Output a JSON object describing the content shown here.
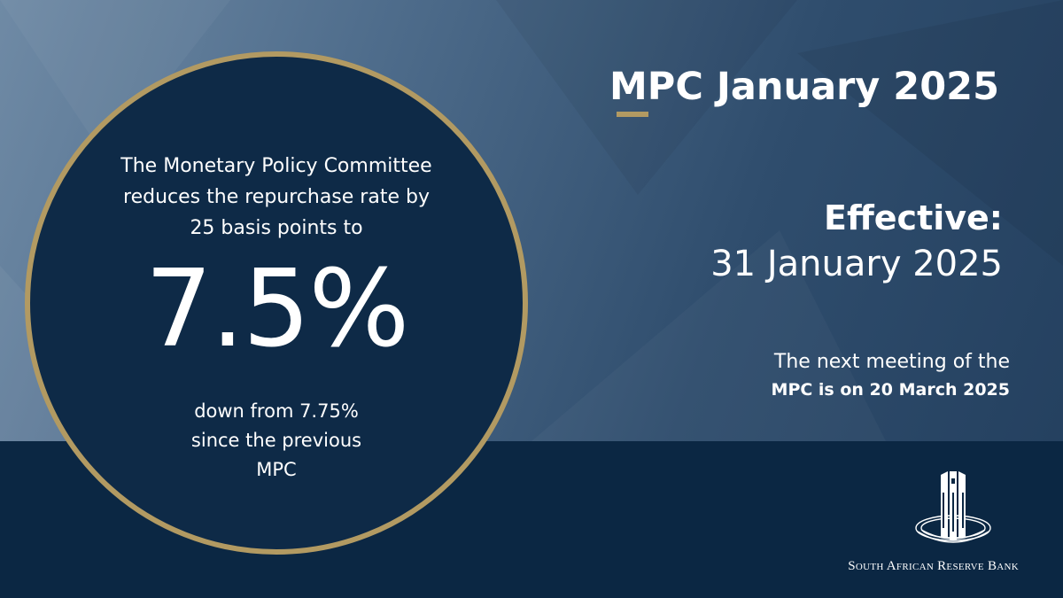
{
  "header": {
    "title": "MPC January 2025"
  },
  "rate_circle": {
    "intro_lines": [
      "The Monetary Policy Committee",
      "reduces the repurchase rate by",
      "25 basis points to"
    ],
    "rate": "7.5%",
    "note_lines": [
      "down from 7.75%",
      "since the previous",
      "MPC"
    ]
  },
  "effective": {
    "label": "Effective:",
    "date": "31 January 2025"
  },
  "next_meeting": {
    "line1": "The next meeting of the",
    "line2": "MPC is on 20 March 2025"
  },
  "brand": {
    "bank_name": "South African Reserve Bank",
    "logo_icon": "reserve-bank-tower-icon"
  },
  "colors": {
    "navy": "#0e2a47",
    "band": "#0b2743",
    "gold": "#b29a62",
    "text": "#ffffff"
  }
}
